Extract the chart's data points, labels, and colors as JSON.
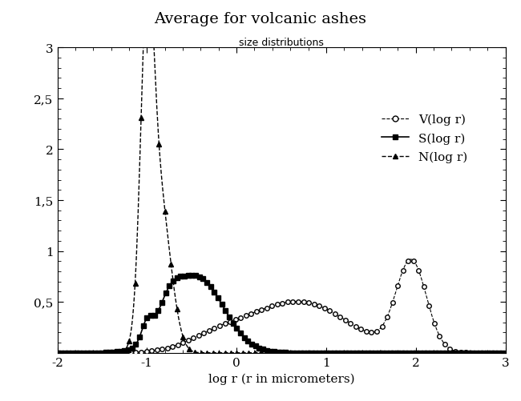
{
  "title": "Average for volcanic ashes",
  "subtitle": "size distributions",
  "xlabel": "log r (r in micrometers)",
  "ylabel": "",
  "xlim": [
    -2,
    3
  ],
  "ylim": [
    0,
    3
  ],
  "yticks": [
    0,
    0.5,
    1,
    1.5,
    2,
    2.5,
    3
  ],
  "ytick_labels": [
    "",
    "0,5",
    "1",
    "1,5",
    "2",
    "2,5",
    "3"
  ],
  "xticks": [
    -2,
    -1,
    0,
    1,
    2,
    3
  ],
  "background_color": "#ffffff",
  "legend_labels": [
    "V(log r)",
    "S(log r)",
    "N(log r)"
  ],
  "N_peak": 2.63,
  "N_peak_x": -1.0,
  "N_sigma1": 0.07,
  "N_secondary_x": -0.9,
  "N_secondary_amp": 1.55,
  "N_secondary_sigma": 0.12,
  "S_peak": 0.75,
  "S_peak_x": -0.45,
  "S_sigma": 0.3,
  "V_peak1_x": 0.7,
  "V_peak1_amp": 0.5,
  "V_peak1_sigma": 0.55,
  "V_peak2_x": 1.95,
  "V_peak2_amp": 0.88,
  "V_peak2_sigma": 0.17
}
